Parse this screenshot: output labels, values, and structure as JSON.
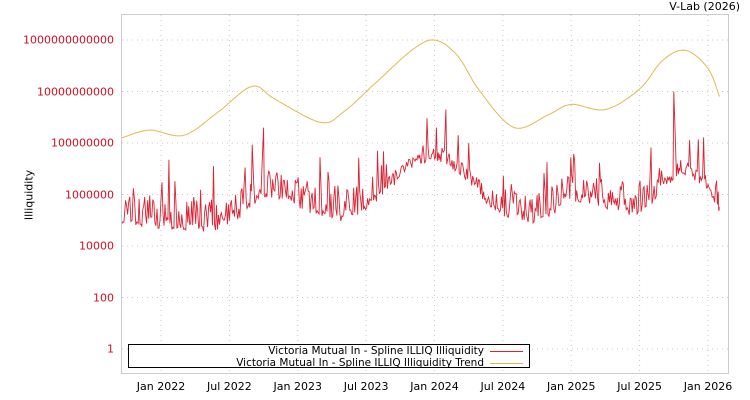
{
  "header": {
    "credit": "V-Lab (2026)"
  },
  "chart_data": {
    "type": "line",
    "title": "",
    "xlabel": "",
    "ylabel": "Illiquidity",
    "yscale": "log",
    "ylim": [
      0.1,
      10000000000000
    ],
    "grid": true,
    "legend_position": "bottom-left-inside",
    "y_ticks": [
      {
        "label": "1000000000000",
        "value": 1000000000000
      },
      {
        "label": "10000000000",
        "value": 10000000000
      },
      {
        "label": "100000000",
        "value": 100000000
      },
      {
        "label": "1000000",
        "value": 1000000
      },
      {
        "label": "10000",
        "value": 10000
      },
      {
        "label": "100",
        "value": 100
      },
      {
        "label": "1",
        "value": 1
      }
    ],
    "x_ticks": [
      "Jan 2022",
      "Jul 2022",
      "Jan 2023",
      "Jul 2023",
      "Jan 2024",
      "Jul 2024",
      "Jan 2025",
      "Jul 2025",
      "Jan 2026"
    ],
    "x_range": [
      "2021-09",
      "2026-02"
    ],
    "series": [
      {
        "name": "Victoria Mutual In - Spline ILLIQ Illiquidity",
        "color": "#dd2233",
        "note": "noisy daily series; log10 values approx (baseline, with spikes)",
        "x": [
          "2021-09",
          "2021-11",
          "2022-01",
          "2022-03",
          "2022-05",
          "2022-07",
          "2022-09",
          "2022-10",
          "2022-12",
          "2023-02",
          "2023-04",
          "2023-06",
          "2023-08",
          "2023-10",
          "2023-12",
          "2024-01",
          "2024-02",
          "2024-04",
          "2024-06",
          "2024-08",
          "2024-10",
          "2024-12",
          "2025-02",
          "2025-04",
          "2025-06",
          "2025-08",
          "2025-10",
          "2025-11",
          "2026-01",
          "2026-02"
        ],
        "log10_values": [
          5.2,
          5.0,
          5.0,
          4.9,
          4.9,
          5.1,
          5.8,
          6.2,
          6.0,
          5.6,
          5.3,
          5.5,
          6.1,
          6.9,
          7.5,
          7.6,
          7.5,
          6.8,
          5.8,
          5.3,
          5.2,
          5.7,
          6.0,
          5.8,
          5.5,
          5.9,
          6.8,
          7.1,
          6.4,
          5.6
        ],
        "spikes": [
          {
            "x": "2022-10",
            "log10_value": 8.6
          },
          {
            "x": "2023-08",
            "log10_value": 7.7
          },
          {
            "x": "2023-12",
            "log10_value": 7.9
          },
          {
            "x": "2024-02",
            "log10_value": 9.3
          },
          {
            "x": "2025-10",
            "log10_value": 10.0
          }
        ]
      },
      {
        "name": "Victoria Mutual In - Spline ILLIQ Illiquidity Trend",
        "color": "#ddbb55",
        "x": [
          "2021-09",
          "2021-12",
          "2022-03",
          "2022-06",
          "2022-09",
          "2022-11",
          "2023-03",
          "2023-05",
          "2023-08",
          "2023-11",
          "2024-01",
          "2024-03",
          "2024-05",
          "2024-08",
          "2024-11",
          "2025-01",
          "2025-04",
          "2025-07",
          "2025-09",
          "2025-11",
          "2026-01",
          "2026-02"
        ],
        "log10_values": [
          8.2,
          8.5,
          8.3,
          9.2,
          10.2,
          9.7,
          8.8,
          9.2,
          10.4,
          11.6,
          12.0,
          11.4,
          10.0,
          8.6,
          9.1,
          9.5,
          9.3,
          10.1,
          11.2,
          11.6,
          10.9,
          9.8
        ]
      }
    ]
  },
  "legend": {
    "items": [
      {
        "label": "Victoria Mutual In - Spline ILLIQ Illiquidity",
        "color": "#dd2233"
      },
      {
        "label": "Victoria Mutual In - Spline ILLIQ Illiquidity Trend",
        "color": "#ddbb55"
      }
    ]
  }
}
